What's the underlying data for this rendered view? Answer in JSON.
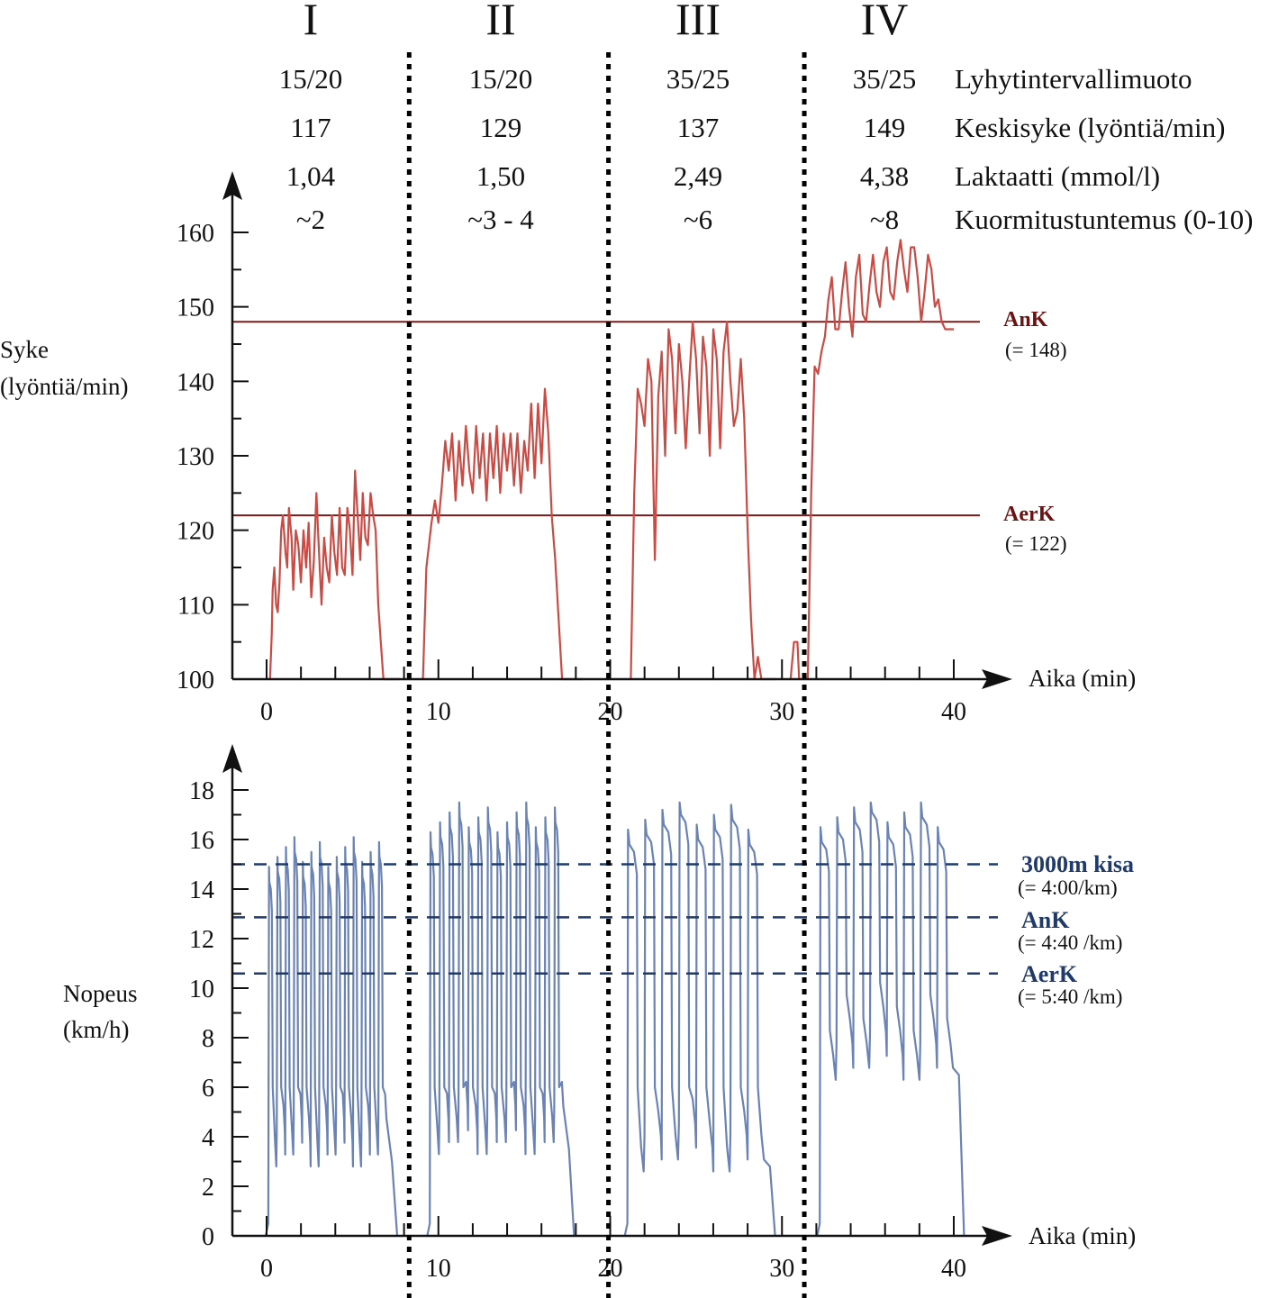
{
  "sections": [
    {
      "roman": "I",
      "interval": "15/20",
      "avg_hr": "117",
      "lactate": "1,04",
      "rpe": "~2"
    },
    {
      "roman": "II",
      "interval": "15/20",
      "avg_hr": "129",
      "lactate": "1,50",
      "rpe": "~3 - 4"
    },
    {
      "roman": "III",
      "interval": "35/25",
      "avg_hr": "137",
      "lactate": "2,49",
      "rpe": "~6"
    },
    {
      "roman": "IV",
      "interval": "35/25",
      "avg_hr": "149",
      "lactate": "4,38",
      "rpe": "~8"
    }
  ],
  "row_labels": {
    "interval": "Lyhytintervallimuoto",
    "avg_hr": "Keskisyke (lyöntiä/min)",
    "lactate": "Laktaatti (mmol/l)",
    "rpe": "Kuormitustuntemus (0-10)"
  },
  "colors": {
    "hr_line": "#cc4a44",
    "hr_ref": "#7a1c1c",
    "speed_line": "#6a82b4",
    "speed_ref": "#1f3a6b",
    "axis": "#111111"
  },
  "chart_data": [
    {
      "type": "line",
      "title": "",
      "ylabel_lines": [
        "Syke",
        "(lyöntiä/min)"
      ],
      "xlabel": "Aika (min)",
      "xlim": [
        -2,
        41
      ],
      "ylim": [
        100,
        160
      ],
      "x_ticks": [
        "0",
        "10",
        "20",
        "30",
        "40"
      ],
      "x_tick_values": [
        0,
        10,
        20,
        30,
        40
      ],
      "y_ticks": [
        "100",
        "110",
        "120",
        "130",
        "140",
        "150",
        "160"
      ],
      "y_tick_values": [
        100,
        110,
        120,
        130,
        140,
        150,
        160
      ],
      "section_boundaries_min": [
        8.3,
        19.9,
        31.3
      ],
      "reference_lines": [
        {
          "name": "AnK",
          "value": 148,
          "label": "AnK",
          "sublabel": "(= 148)"
        },
        {
          "name": "AerK",
          "value": 122,
          "label": "AerK",
          "sublabel": "(= 122)"
        }
      ],
      "series": [
        {
          "name": "Syke",
          "segments": [
            {
              "x": [
                0.2,
                0.3,
                0.35,
                0.45,
                0.55,
                0.65,
                0.75,
                0.85,
                0.95,
                1.1,
                1.2,
                1.3,
                1.45,
                1.55,
                1.7,
                1.85,
                2.0,
                2.15,
                2.3,
                2.45,
                2.6,
                2.75,
                2.9,
                3.05,
                3.2,
                3.35,
                3.5,
                3.65,
                3.8,
                3.95,
                4.1,
                4.25,
                4.4,
                4.55,
                4.7,
                4.85,
                5.0,
                5.15,
                5.3,
                5.45,
                5.6,
                5.75,
                5.9,
                6.05,
                6.2,
                6.35,
                6.5,
                6.65,
                6.8,
                6.95,
                7.1,
                7.25,
                7.4,
                7.55,
                7.7
              ],
              "y": [
                100,
                106,
                112,
                115,
                110,
                109,
                113,
                120,
                122,
                117,
                115,
                123,
                119,
                112,
                120,
                118,
                113,
                120,
                115,
                121,
                111,
                116,
                125,
                117,
                110,
                119,
                115,
                113,
                122,
                117,
                114,
                123,
                115,
                114,
                123,
                120,
                114,
                128,
                122,
                116,
                125,
                119,
                118,
                125,
                122,
                120,
                110,
                105,
                100,
                100,
                100,
                100,
                100,
                100,
                100
              ]
            },
            {
              "x": [
                9.1,
                9.3,
                9.6,
                9.8,
                10.0,
                10.2,
                10.4,
                10.6,
                10.8,
                11.0,
                11.2,
                11.4,
                11.6,
                11.8,
                12.0,
                12.2,
                12.4,
                12.6,
                12.8,
                13.0,
                13.2,
                13.4,
                13.6,
                13.8,
                14.0,
                14.2,
                14.4,
                14.6,
                14.8,
                15.0,
                15.2,
                15.4,
                15.6,
                15.8,
                16.0,
                16.2,
                16.4,
                16.6,
                16.8,
                17.0,
                17.2,
                17.4,
                17.6,
                17.8,
                18.0,
                18.2,
                18.4
              ],
              "y": [
                100,
                115,
                121,
                124,
                121,
                126,
                132,
                128,
                133,
                124,
                132,
                126,
                134,
                128,
                125,
                134,
                127,
                133,
                124,
                133,
                127,
                134,
                125,
                133,
                128,
                133,
                126,
                133,
                125,
                132,
                128,
                137,
                127,
                137,
                129,
                139,
                133,
                122,
                116,
                108,
                100,
                100,
                100,
                100,
                100,
                100,
                100
              ]
            },
            {
              "x": [
                21.2,
                21.4,
                21.6,
                21.8,
                22.0,
                22.2,
                22.4,
                22.6,
                22.8,
                23.0,
                23.2,
                23.4,
                23.6,
                23.8,
                24.0,
                24.2,
                24.4,
                24.6,
                24.8,
                25.0,
                25.2,
                25.4,
                25.6,
                25.8,
                26.0,
                26.2,
                26.4,
                26.6,
                26.8,
                27.0,
                27.2,
                27.4,
                27.6,
                27.8,
                28.0,
                28.2,
                28.4,
                28.6,
                28.8,
                29.0,
                29.2,
                29.4,
                29.6
              ],
              "y": [
                100,
                125,
                139,
                137,
                134,
                143,
                140,
                116,
                138,
                144,
                130,
                147,
                143,
                133,
                145,
                140,
                131,
                140,
                148,
                143,
                133,
                146,
                142,
                130,
                147,
                143,
                131,
                144,
                148,
                140,
                134,
                136,
                143,
                135,
                120,
                108,
                100,
                103,
                100,
                100,
                100,
                100,
                100
              ]
            },
            {
              "x": [
                30.5,
                30.7,
                30.9,
                31.0
              ],
              "y": [
                100,
                105,
                105,
                100
              ]
            },
            {
              "x": [
                31.5,
                31.7,
                31.9,
                32.1,
                32.3,
                32.5,
                32.7,
                32.9,
                33.1,
                33.3,
                33.5,
                33.7,
                33.9,
                34.1,
                34.3,
                34.5,
                34.7,
                34.9,
                35.1,
                35.3,
                35.5,
                35.7,
                35.9,
                36.1,
                36.3,
                36.5,
                36.7,
                36.9,
                37.1,
                37.3,
                37.5,
                37.7,
                37.9,
                38.1,
                38.3,
                38.5,
                38.7,
                38.9,
                39.1,
                39.3,
                39.5,
                39.7,
                39.9,
                40.0
              ],
              "y": [
                100,
                125,
                142,
                141,
                144,
                146,
                151,
                154,
                147,
                147,
                152,
                156,
                150,
                146,
                154,
                157,
                149,
                148,
                153,
                157,
                152,
                150,
                156,
                158,
                152,
                151,
                156,
                159,
                155,
                152,
                158,
                158,
                154,
                148,
                152,
                157,
                155,
                150,
                151,
                148,
                147,
                147,
                147,
                147
              ]
            }
          ]
        }
      ]
    },
    {
      "type": "line",
      "title": "",
      "ylabel_lines": [
        "Nopeus",
        "(km/h)"
      ],
      "xlabel": "Aika (min)",
      "xlim": [
        -2,
        41
      ],
      "ylim": [
        0,
        18
      ],
      "x_ticks": [
        "0",
        "10",
        "20",
        "30",
        "40"
      ],
      "x_tick_values": [
        0,
        10,
        20,
        30,
        40
      ],
      "y_ticks": [
        "0",
        "2",
        "4",
        "6",
        "8",
        "10",
        "12",
        "14",
        "16",
        "18"
      ],
      "y_tick_values": [
        0,
        2,
        4,
        6,
        8,
        10,
        12,
        14,
        16,
        18
      ],
      "section_boundaries_min": [
        8.3,
        19.9,
        31.3
      ],
      "reference_lines": [
        {
          "name": "3000m kisa",
          "value": 15.0,
          "label": "3000m kisa",
          "sublabel": "(= 4:00/km)"
        },
        {
          "name": "AnK",
          "value": 12.86,
          "label": "AnK",
          "sublabel": "(= 4:40 /km)"
        },
        {
          "name": "AerK",
          "value": 10.59,
          "label": "AerK",
          "sublabel": "(= 5:40 /km)"
        }
      ],
      "interval_pattern": [
        {
          "section": "I",
          "start": 0.1,
          "end": 7.0,
          "reps": 14,
          "high": 15.0,
          "low": 4.0
        },
        {
          "section": "II",
          "start": 9.5,
          "end": 17.3,
          "reps": 14,
          "high": 16.4,
          "low": 4.5
        },
        {
          "section": "III",
          "start": 21.0,
          "end": 29.0,
          "reps": 8,
          "high": 16.5,
          "low": 3.8
        },
        {
          "section": "IV",
          "start": 32.2,
          "end": 40.0,
          "reps": 8,
          "high": 16.6,
          "low": 7.5
        }
      ]
    }
  ],
  "annotations": {
    "hr_xlabel": "Aika (min)",
    "speed_xlabel": "Aika (min)"
  }
}
